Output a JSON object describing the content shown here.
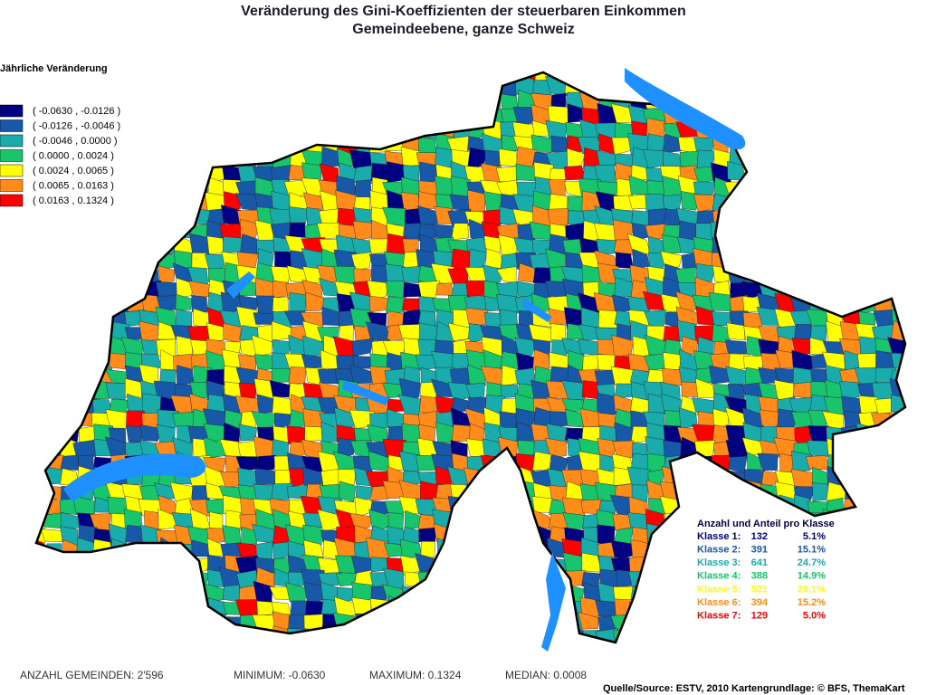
{
  "title": [
    "Veränderung des Gini-Koeffizienten der steuerbaren Einkommen",
    "Gemeindeebene, ganze Schweiz"
  ],
  "legend": {
    "title": "Jährliche Veränderung",
    "items": [
      {
        "label": "( -0.0630 , -0.0126 )",
        "color": "#000080"
      },
      {
        "label": "( -0.0126 , -0.0046 )",
        "color": "#1858a8"
      },
      {
        "label": "( -0.0046 , 0.0000 )",
        "color": "#1aabab"
      },
      {
        "label": "( 0.0000 , 0.0024 )",
        "color": "#18c46c"
      },
      {
        "label": "( 0.0024 , 0.0065 )",
        "color": "#ffff00"
      },
      {
        "label": "( 0.0065 , 0.0163 )",
        "color": "#ff8c1a"
      },
      {
        "label": "( 0.0163 , 0.1324 )",
        "color": "#ff0000"
      }
    ]
  },
  "classes": {
    "title": "Anzahl und Anteil pro Klasse",
    "rows": [
      {
        "label": "Klasse 1:",
        "count": 132,
        "share": "5.1%"
      },
      {
        "label": "Klasse 2:",
        "count": 391,
        "share": "15.1%"
      },
      {
        "label": "Klasse 3:",
        "count": 641,
        "share": "24.7%"
      },
      {
        "label": "Klasse 4:",
        "count": 388,
        "share": "14.9%"
      },
      {
        "label": "Klasse 5:",
        "count": 521,
        "share": "20.1%"
      },
      {
        "label": "Klasse 6:",
        "count": 394,
        "share": "15.2%"
      },
      {
        "label": "Klasse 7:",
        "count": 129,
        "share": "5.0%"
      }
    ]
  },
  "footer": {
    "stats": [
      "ANZAHL GEMEINDEN: 2'596",
      "MINIMUM: -0.0630",
      "MAXIMUM: 0.1324",
      "MEDIAN: 0.0008"
    ],
    "source": "Quelle/Source: ESTV, 2010 Kartengrundlage: © BFS, ThemaKart"
  }
}
